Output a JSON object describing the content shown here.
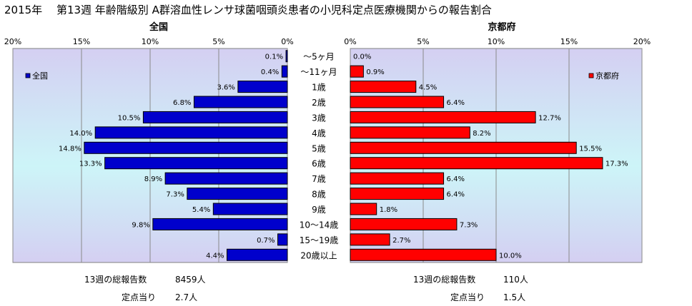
{
  "title": "2015年　 第13週 年齢階級別 A群溶血性レンサ球菌咽頭炎患者の小児科定点医療機関からの報告割合",
  "chart_data": [
    {
      "type": "bar",
      "orientation": "horizontal",
      "title": "全国",
      "legend": "全国",
      "legend_position": "top-left",
      "color": "#0000CC",
      "xlim": [
        0,
        20
      ],
      "ticks": [
        "20%",
        "15%",
        "10%",
        "5%",
        "0%"
      ],
      "categories": [
        "～5ヶ月",
        "～11ヶ月",
        "1歳",
        "2歳",
        "3歳",
        "4歳",
        "5歳",
        "6歳",
        "7歳",
        "8歳",
        "9歳",
        "10～14歳",
        "15～19歳",
        "20歳以上"
      ],
      "values": [
        0.1,
        0.4,
        3.6,
        6.8,
        10.5,
        14.0,
        14.8,
        13.3,
        8.9,
        7.3,
        5.4,
        9.8,
        0.7,
        4.4
      ],
      "labels": [
        "0.1%",
        "0.4%",
        "3.6%",
        "6.8%",
        "10.5%",
        "14.0%",
        "14.8%",
        "13.3%",
        "8.9%",
        "7.3%",
        "5.4%",
        "9.8%",
        "0.7%",
        "4.4%"
      ],
      "grid": true
    },
    {
      "type": "bar",
      "orientation": "horizontal",
      "title": "京都府",
      "legend": "京都府",
      "legend_position": "top-right",
      "color": "#FF0000",
      "xlim": [
        0,
        20
      ],
      "ticks": [
        "0%",
        "5%",
        "10%",
        "15%",
        "20%"
      ],
      "categories": [
        "～5ヶ月",
        "～11ヶ月",
        "1歳",
        "2歳",
        "3歳",
        "4歳",
        "5歳",
        "6歳",
        "7歳",
        "8歳",
        "9歳",
        "10～14歳",
        "15～19歳",
        "20歳以上"
      ],
      "values": [
        0.0,
        0.9,
        4.5,
        6.4,
        12.7,
        8.2,
        15.5,
        17.3,
        6.4,
        6.4,
        1.8,
        7.3,
        2.7,
        10.0
      ],
      "labels": [
        "0.0%",
        "0.9%",
        "4.5%",
        "6.4%",
        "12.7%",
        "8.2%",
        "15.5%",
        "17.3%",
        "6.4%",
        "6.4%",
        "1.8%",
        "7.3%",
        "2.7%",
        "10.0%"
      ],
      "grid": true
    }
  ],
  "stats": {
    "national_total_label": "13週の総報告数",
    "national_total_value": "8459人",
    "national_per_label": "定点当り",
    "national_per_value": "2.7人",
    "kyoto_total_label": "13週の総報告数",
    "kyoto_total_value": "110人",
    "kyoto_per_label": "定点当り",
    "kyoto_per_value": "1.5人"
  }
}
